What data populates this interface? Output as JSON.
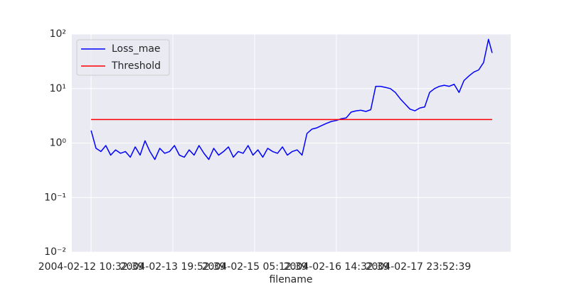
{
  "chart_data": {
    "type": "line",
    "x_label": "filename",
    "log_y": true,
    "grid": true,
    "legend": "upper left",
    "xlim": [
      "2004-02-12 02:42:00",
      "2004-02-19 13:35:00"
    ],
    "xticks": [
      "2004-02-12 10:32:39",
      "2004-02-13 19:52:39",
      "2004-02-15 05:12:39",
      "2004-02-16 14:32:39",
      "2004-02-17 23:52:39"
    ],
    "ylim": [
      0.01,
      100
    ],
    "yticks": [
      {
        "value": 0.01,
        "label": "10⁻²"
      },
      {
        "value": 0.1,
        "label": "10⁻¹"
      },
      {
        "value": 1,
        "label": "10⁰"
      },
      {
        "value": 10,
        "label": "10¹"
      },
      {
        "value": 100,
        "label": "10²"
      }
    ],
    "series": [
      {
        "name": "Loss_mae",
        "color": "#0000ff",
        "x": [
          "2004-02-12 10:32:39",
          "2004-02-12 12:32:39",
          "2004-02-12 14:32:39",
          "2004-02-12 16:32:39",
          "2004-02-12 18:32:39",
          "2004-02-12 20:32:39",
          "2004-02-12 22:32:39",
          "2004-02-13 00:32:39",
          "2004-02-13 02:32:39",
          "2004-02-13 04:32:39",
          "2004-02-13 06:32:39",
          "2004-02-13 08:32:39",
          "2004-02-13 10:32:39",
          "2004-02-13 12:32:39",
          "2004-02-13 14:32:39",
          "2004-02-13 16:32:39",
          "2004-02-13 18:32:39",
          "2004-02-13 20:32:39",
          "2004-02-13 22:32:39",
          "2004-02-14 00:32:39",
          "2004-02-14 02:32:39",
          "2004-02-14 04:32:39",
          "2004-02-14 06:32:39",
          "2004-02-14 08:32:39",
          "2004-02-14 10:32:39",
          "2004-02-14 12:32:39",
          "2004-02-14 14:32:39",
          "2004-02-14 16:32:39",
          "2004-02-14 18:32:39",
          "2004-02-14 20:32:39",
          "2004-02-14 22:32:39",
          "2004-02-15 00:32:39",
          "2004-02-15 02:32:39",
          "2004-02-15 04:32:39",
          "2004-02-15 06:32:39",
          "2004-02-15 08:32:39",
          "2004-02-15 10:32:39",
          "2004-02-15 12:32:39",
          "2004-02-15 14:32:39",
          "2004-02-15 16:32:39",
          "2004-02-15 18:32:39",
          "2004-02-15 20:32:39",
          "2004-02-15 22:32:39",
          "2004-02-16 00:32:39",
          "2004-02-16 02:32:39",
          "2004-02-16 04:32:39",
          "2004-02-16 06:32:39",
          "2004-02-16 08:32:39",
          "2004-02-16 10:32:39",
          "2004-02-16 12:32:39",
          "2004-02-16 14:32:39",
          "2004-02-16 16:32:39",
          "2004-02-16 18:32:39",
          "2004-02-16 20:32:39",
          "2004-02-16 22:32:39",
          "2004-02-17 00:32:39",
          "2004-02-17 02:32:39",
          "2004-02-17 04:32:39",
          "2004-02-17 06:32:39",
          "2004-02-17 08:32:39",
          "2004-02-17 10:32:39",
          "2004-02-17 12:32:39",
          "2004-02-17 14:32:39",
          "2004-02-17 16:32:39",
          "2004-02-17 18:32:39",
          "2004-02-17 20:32:39",
          "2004-02-17 22:32:39",
          "2004-02-18 00:32:39",
          "2004-02-18 02:32:39",
          "2004-02-18 04:32:39",
          "2004-02-18 06:32:39",
          "2004-02-18 08:32:39",
          "2004-02-18 10:32:39",
          "2004-02-18 12:32:39",
          "2004-02-18 14:32:39",
          "2004-02-18 16:32:39",
          "2004-02-18 18:32:39",
          "2004-02-18 20:32:39",
          "2004-02-18 22:32:39",
          "2004-02-19 00:32:39",
          "2004-02-19 02:32:39",
          "2004-02-19 04:32:39",
          "2004-02-19 06:02:39"
        ],
        "values": [
          1.7,
          0.8,
          0.7,
          0.9,
          0.6,
          0.75,
          0.65,
          0.7,
          0.55,
          0.85,
          0.6,
          1.1,
          0.7,
          0.5,
          0.8,
          0.65,
          0.7,
          0.9,
          0.6,
          0.55,
          0.75,
          0.6,
          0.9,
          0.65,
          0.5,
          0.8,
          0.6,
          0.7,
          0.85,
          0.55,
          0.7,
          0.65,
          0.9,
          0.6,
          0.75,
          0.55,
          0.8,
          0.7,
          0.65,
          0.85,
          0.6,
          0.7,
          0.75,
          0.6,
          1.5,
          1.8,
          1.9,
          2.1,
          2.3,
          2.5,
          2.6,
          2.8,
          2.9,
          3.7,
          3.9,
          4.0,
          3.8,
          4.1,
          11,
          11,
          10.5,
          10,
          8.5,
          6.5,
          5.2,
          4.2,
          3.9,
          4.4,
          4.6,
          8.5,
          10,
          11,
          11.5,
          11,
          12,
          8.5,
          14,
          17,
          20,
          22,
          30,
          80,
          45
        ]
      },
      {
        "name": "Threshold",
        "color": "#ff0000",
        "x": [
          "2004-02-12 10:32:39",
          "2004-02-19 06:02:39"
        ],
        "values": [
          2.7,
          2.7
        ]
      }
    ]
  }
}
